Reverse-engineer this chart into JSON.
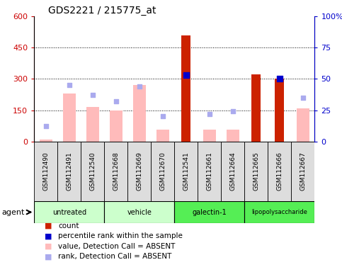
{
  "title": "GDS2221 / 215775_at",
  "samples": [
    "GSM112490",
    "GSM112491",
    "GSM112540",
    "GSM112668",
    "GSM112669",
    "GSM112670",
    "GSM112541",
    "GSM112661",
    "GSM112664",
    "GSM112665",
    "GSM112666",
    "GSM112667"
  ],
  "count_values": [
    null,
    null,
    null,
    null,
    null,
    null,
    510,
    null,
    null,
    320,
    300,
    null
  ],
  "percentile_values_right": [
    null,
    null,
    null,
    null,
    null,
    null,
    53,
    null,
    null,
    null,
    50,
    null
  ],
  "absent_value_bars": [
    10,
    230,
    165,
    150,
    270,
    55,
    null,
    55,
    55,
    null,
    null,
    160
  ],
  "absent_rank_dots_right": [
    12,
    45,
    37,
    32,
    44,
    20,
    null,
    22,
    24,
    null,
    null,
    35
  ],
  "ylim_left": [
    0,
    600
  ],
  "ylim_right": [
    0,
    100
  ],
  "yticks_left": [
    0,
    150,
    300,
    450,
    600
  ],
  "ytick_labels_left": [
    "0",
    "150",
    "300",
    "450",
    "600"
  ],
  "ytick_labels_right": [
    "0",
    "25",
    "50",
    "75",
    "100%"
  ],
  "left_tick_color": "#cc0000",
  "right_tick_color": "#0000cc",
  "count_color": "#cc2200",
  "percentile_color": "#0000cc",
  "absent_bar_color": "#ffbbbb",
  "absent_dot_color": "#aaaaee",
  "group_defs": [
    {
      "name": "untreated",
      "start": 0,
      "end": 2,
      "color": "#ccffcc"
    },
    {
      "name": "vehicle",
      "start": 3,
      "end": 5,
      "color": "#ccffcc"
    },
    {
      "name": "galectin-1",
      "start": 6,
      "end": 8,
      "color": "#55ee55"
    },
    {
      "name": "lipopolysaccharide",
      "start": 9,
      "end": 11,
      "color": "#55ee55"
    }
  ],
  "legend_items": [
    {
      "color": "#cc2200",
      "label": "count"
    },
    {
      "color": "#0000cc",
      "label": "percentile rank within the sample"
    },
    {
      "color": "#ffbbbb",
      "label": "value, Detection Call = ABSENT"
    },
    {
      "color": "#aaaaee",
      "label": "rank, Detection Call = ABSENT"
    }
  ],
  "agent_label": "agent"
}
